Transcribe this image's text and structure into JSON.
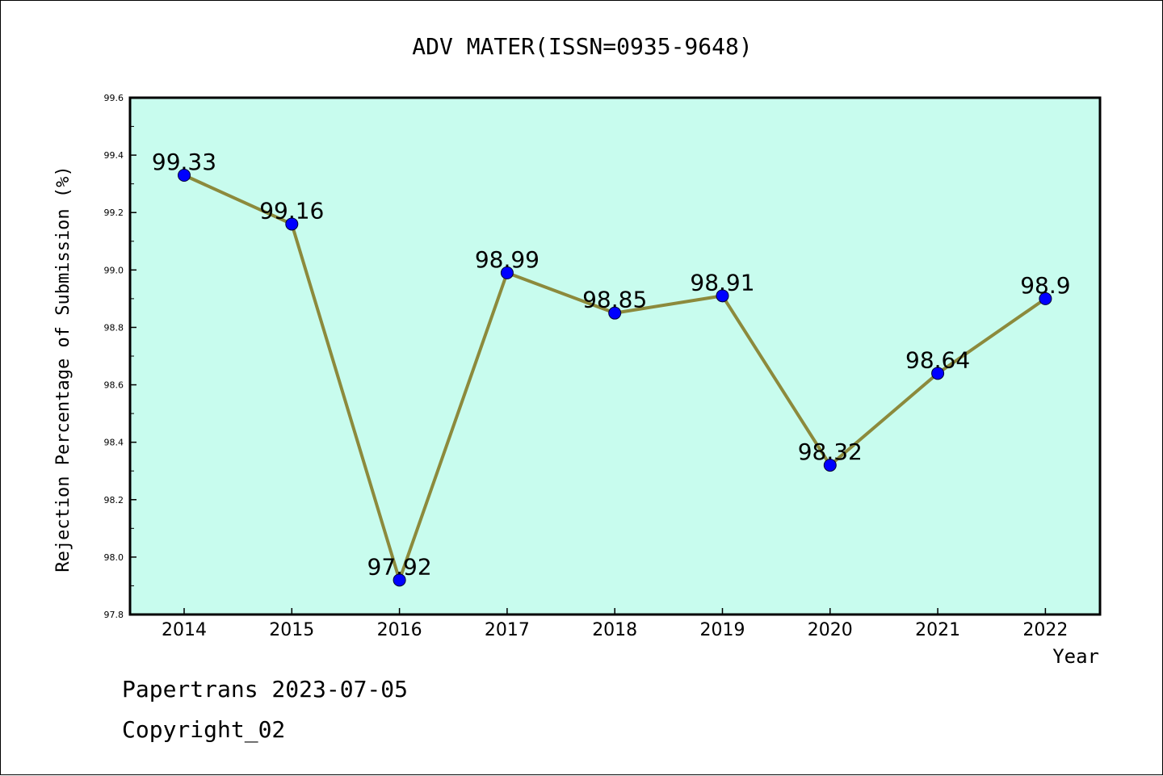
{
  "chart_data": {
    "type": "line",
    "title": "ADV MATER(ISSN=0935-9648)",
    "xlabel": "Year",
    "ylabel": "Rejection Percentage of Submission (%)",
    "categories": [
      "2014",
      "2015",
      "2016",
      "2017",
      "2018",
      "2019",
      "2020",
      "2021",
      "2022"
    ],
    "series": [
      {
        "values": [
          99.33,
          99.16,
          97.92,
          98.99,
          98.85,
          98.91,
          98.32,
          98.64,
          98.9
        ],
        "labels": [
          "99.33",
          "99.16",
          "97.92",
          "98.99",
          "98.85",
          "98.91",
          "98.32",
          "98.64",
          "98.9"
        ]
      }
    ],
    "ylim": [
      97.8,
      99.6
    ],
    "yticks": [
      "97.8",
      "98.0",
      "98.2",
      "98.4",
      "98.6",
      "98.8",
      "99.0",
      "99.2",
      "99.4",
      "99.6"
    ],
    "grid": false,
    "colors": {
      "plot_background": "#c8fcee",
      "line": "#8c8a3c",
      "marker": "#0000ff"
    }
  },
  "footer": {
    "source": "Papertrans 2023-07-05",
    "copyright": "Copyright_02"
  }
}
